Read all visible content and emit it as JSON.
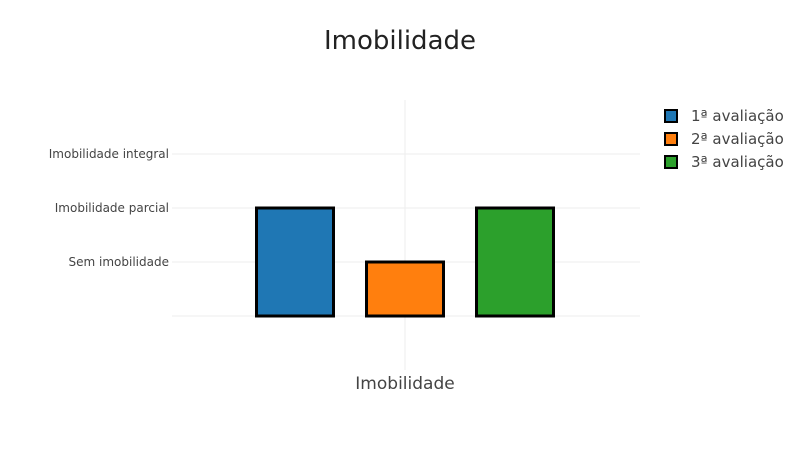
{
  "chart_data": {
    "type": "bar",
    "title": "Imobilidade",
    "categories": [
      "Imobilidade"
    ],
    "y_categories": [
      "Sem imobilidade",
      "Imobilidade parcial",
      "Imobilidade integral"
    ],
    "ylim": [
      0,
      3
    ],
    "series": [
      {
        "name": "1ª avaliação",
        "values": [
          2
        ],
        "color": "#1f77b4"
      },
      {
        "name": "2ª avaliação",
        "values": [
          1
        ],
        "color": "#ff7f0e"
      },
      {
        "name": "3ª avaliação",
        "values": [
          2
        ],
        "color": "#2ca02c"
      }
    ],
    "grid": true,
    "legend": "top-right"
  }
}
